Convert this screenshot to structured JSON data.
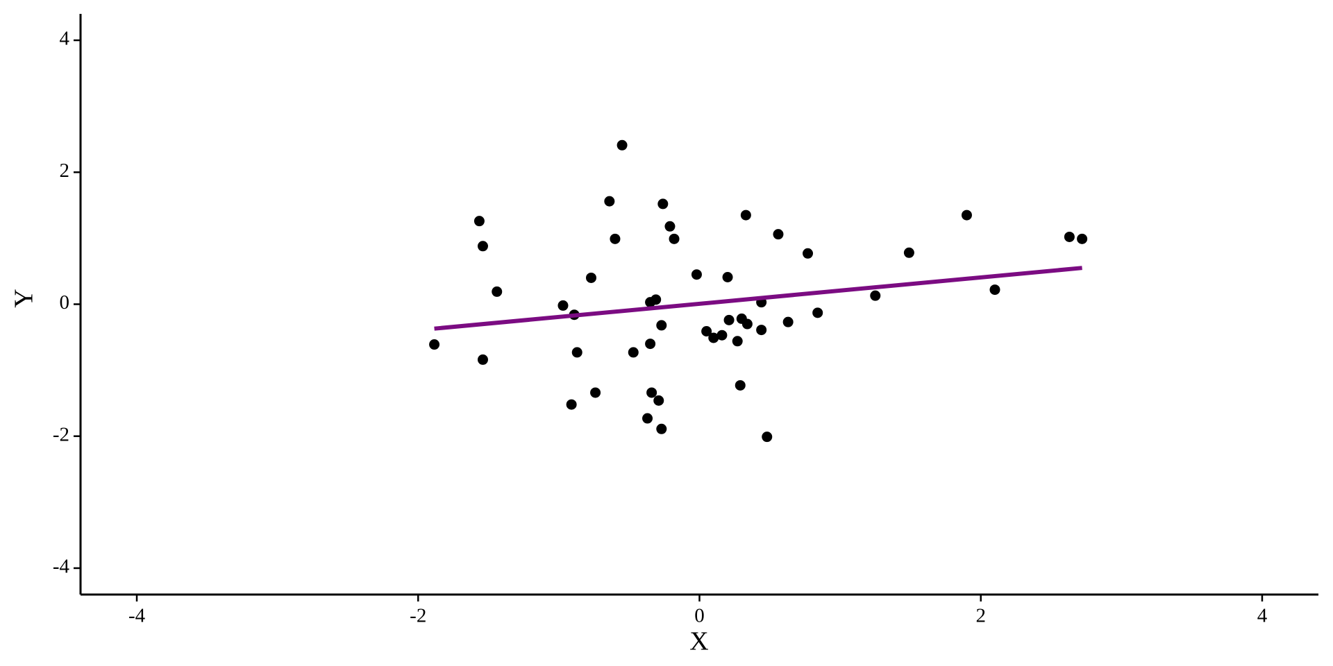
{
  "chart_data": {
    "type": "scatter",
    "x_label": "X",
    "y_label": "Y",
    "xlim": [
      -4.4,
      4.4
    ],
    "ylim": [
      -4.4,
      4.4
    ],
    "xticks": [
      -4,
      -2,
      0,
      2,
      4
    ],
    "yticks": [
      -4,
      -2,
      0,
      2,
      4
    ],
    "color": "#000000",
    "x": [
      -1.885,
      -1.565,
      -1.54,
      -1.54,
      -1.44,
      -0.97,
      -0.89,
      -0.91,
      -0.87,
      -0.77,
      -0.74,
      -0.64,
      -0.6,
      -0.55,
      -0.47,
      -0.37,
      -0.35,
      -0.35,
      -0.34,
      -0.31,
      -0.29,
      -0.27,
      -0.27,
      -0.26,
      -0.21,
      -0.18,
      -0.02,
      0.05,
      0.1,
      0.16,
      0.2,
      0.21,
      0.27,
      0.3,
      0.29,
      0.33,
      0.34,
      0.44,
      0.44,
      0.48,
      0.56,
      0.63,
      0.77,
      0.84,
      1.25,
      1.49,
      1.9,
      2.1,
      2.63,
      2.72
    ],
    "y": [
      -0.61,
      1.26,
      0.88,
      -0.84,
      0.19,
      -0.02,
      -0.16,
      -1.52,
      -0.73,
      0.4,
      -1.34,
      1.56,
      0.99,
      2.41,
      -0.73,
      -1.73,
      0.03,
      -0.6,
      -1.34,
      0.07,
      -1.46,
      -1.89,
      -0.32,
      1.52,
      1.18,
      0.99,
      0.45,
      -0.41,
      -0.51,
      -0.47,
      0.41,
      -0.24,
      -0.56,
      -0.22,
      -1.23,
      1.35,
      -0.3,
      0.03,
      -0.39,
      -2.01,
      1.06,
      -0.27,
      0.77,
      -0.13,
      0.13,
      0.78,
      1.35,
      0.22,
      1.02,
      0.99
    ],
    "fit": {
      "x": [
        -1.885,
        2.72
      ],
      "y": [
        -0.37,
        0.55
      ],
      "color": "#7b0c82"
    }
  }
}
